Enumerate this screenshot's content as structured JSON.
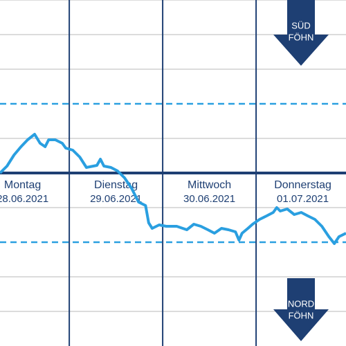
{
  "chart_data": {
    "type": "line",
    "days": [
      {
        "name": "Montag",
        "date": "28.06.2021"
      },
      {
        "name": "Dienstag",
        "date": "29.06.2021"
      },
      {
        "name": "Mittwoch",
        "date": "30.06.2021"
      },
      {
        "name": "Donnerstag",
        "date": "01.07.2021"
      }
    ],
    "south_label": [
      "SÜD",
      "FÖHN"
    ],
    "north_label": [
      "NORD",
      "FÖHN"
    ],
    "x": [
      6.2,
      8.0,
      9.8,
      11.6,
      13.3,
      15.1,
      16.5,
      17.8,
      18.7,
      20.4,
      22.2,
      23.1,
      24.9,
      26.7,
      28.4,
      30.2,
      31.1,
      32.0,
      32.9,
      34.7,
      36.4,
      38.2,
      40.0,
      41.8,
      43.6,
      44.4,
      45.3,
      47.1,
      48.9,
      51.6,
      54.2,
      56.0,
      57.8,
      59.6,
      61.3,
      63.1,
      64.9,
      66.7,
      67.6,
      68.4,
      69.9,
      71.1,
      72.9,
      74.7,
      76.4,
      77.3,
      78.2,
      80.0,
      81.8,
      83.6,
      85.3,
      87.1,
      88.9,
      90.7,
      92.1,
      93.3,
      95.1
    ],
    "series": [
      {
        "color": "#2a9fe0",
        "values": [
          0,
          0.2,
          0.52,
          0.76,
          0.96,
          1.12,
          0.86,
          0.76,
          0.96,
          0.96,
          0.86,
          0.72,
          0.66,
          0.46,
          0.16,
          0.2,
          0.22,
          0.4,
          0.2,
          0.16,
          0.06,
          -0.14,
          -0.44,
          -0.84,
          -0.94,
          -1.44,
          -1.6,
          -1.5,
          -1.54,
          -1.54,
          -1.64,
          -1.48,
          -1.54,
          -1.64,
          -1.74,
          -1.6,
          -1.64,
          -1.7,
          -1.94,
          -1.74,
          -1.6,
          -1.48,
          -1.34,
          -1.24,
          -1.14,
          -1,
          -1.1,
          -1.04,
          -1.2,
          -1.14,
          -1.24,
          -1.34,
          -1.54,
          -1.84,
          -2.04,
          -1.84,
          -1.74
        ]
      }
    ],
    "xlim": [
      6.2,
      95.1
    ],
    "xticks": [
      24,
      48,
      72,
      96
    ],
    "ylim": [
      -5,
      5
    ],
    "yticks": [
      -4,
      -3,
      -1,
      1,
      3,
      4,
      5
    ],
    "reference_lines": [
      -2,
      2
    ],
    "zero_line": 0,
    "grid": true
  }
}
